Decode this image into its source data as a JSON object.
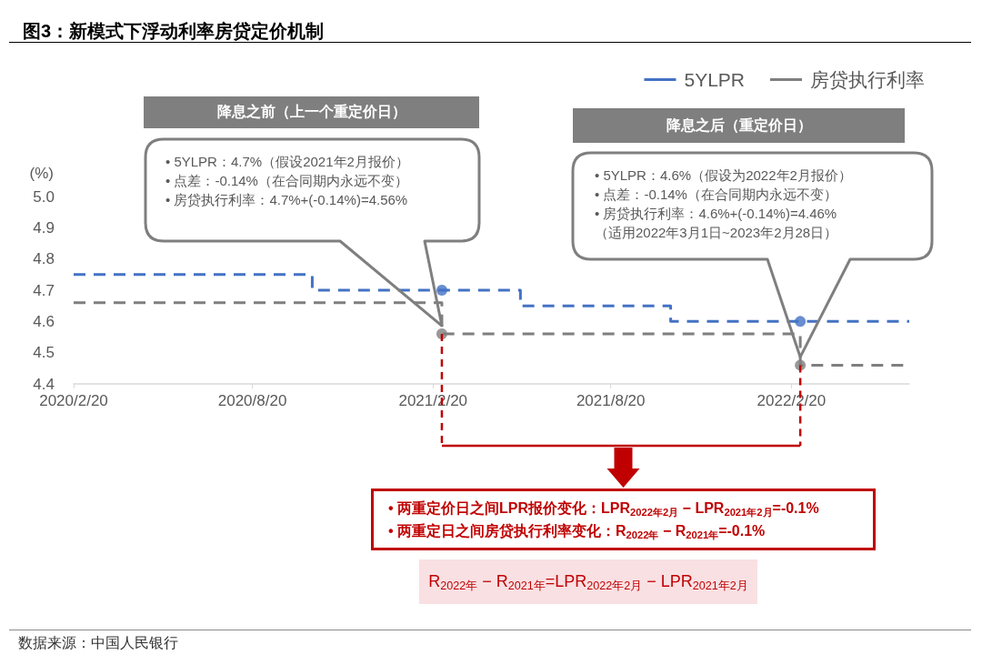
{
  "chart_data": {
    "type": "step",
    "title": "图3：新模式下浮动利率房贷定价机制",
    "ylabel": "(%)",
    "xlim": [
      "2020-02-20",
      "2022-06-20"
    ],
    "xticks": [
      {
        "value": "2020-02-20",
        "label": "2020/2/20"
      },
      {
        "value": "2020-08-20",
        "label": "2020/8/20"
      },
      {
        "value": "2021-02-20",
        "label": "2021/2/20"
      },
      {
        "value": "2021-08-20",
        "label": "2021/8/20"
      },
      {
        "value": "2022-02-20",
        "label": "2022/2/20"
      }
    ],
    "ylim": [
      4.4,
      5.0
    ],
    "yticks": [
      4.4,
      4.5,
      4.6,
      4.7,
      4.8,
      4.9,
      {
        "value": 5.0,
        "label": "5.0"
      }
    ],
    "legend": "top right",
    "line_style": "dashed",
    "series": [
      {
        "name": "5YLPR",
        "color": "#4472c4",
        "x": [
          "2020-02-20",
          "2020-10-20",
          "2021-05-20",
          "2021-10-20",
          "2022-06-20"
        ],
        "values": [
          4.75,
          4.7,
          4.65,
          4.6,
          4.6
        ]
      },
      {
        "name": "房贷执行利率",
        "color": "#7f7f7f",
        "x": [
          "2020-02-20",
          "2021-03-01",
          "2022-03-01",
          "2022-06-20"
        ],
        "values": [
          4.66,
          4.56,
          4.46,
          4.46
        ]
      },
      {
        "type": "scatter",
        "color": "#4472c4",
        "marker": "circle",
        "x": [
          "2021-03-01",
          "2022-03-01"
        ],
        "values": [
          4.7,
          4.6
        ]
      },
      {
        "type": "scatter",
        "color": "#7f7f7f",
        "marker": "circle",
        "x": [
          "2021-03-01",
          "2022-03-01"
        ],
        "values": [
          4.56,
          4.46
        ]
      }
    ],
    "ref_lines": [
      {
        "axis": "x",
        "value": "2021-03-01",
        "color": "#c00000",
        "line_style": "dashed"
      },
      {
        "axis": "x",
        "value": "2022-03-01",
        "color": "#c00000",
        "line_style": "dashed"
      }
    ],
    "annotations": [
      "降息之前（上一个重定价日）",
      "• 5YLPR：4.7%（假设2021年2月报价）\n• 点差：-0.14%（在合同期内永远不变）\n• 房贷执行利率：4.7%+(-0.14%)=4.56%",
      "降息之后（重定价日）",
      "• 5YLPR：4.6%（假设为2022年2月报价）\n• 点差：-0.14%（在合同期内永远不变）\n• 房贷执行利率：4.6%+(-0.14%)=4.46%\n（适用2022年3月1日~2023年2月28日）",
      "• 两重定价日之间LPR报价变化：LPR$_{2022年2月}$ − LPR$_{2021年2月}$=-0.1%\n• 两重定日之间房贷执行利率变化：R$_{2022年}$ − R$_{2021年}$=-0.1%",
      "R$_{2022年}$ − R$_{2021年}$=LPR$_{2022年2月}$ − LPR$_{2021年2月}$",
      "数据来源：中国人民银行"
    ]
  }
}
